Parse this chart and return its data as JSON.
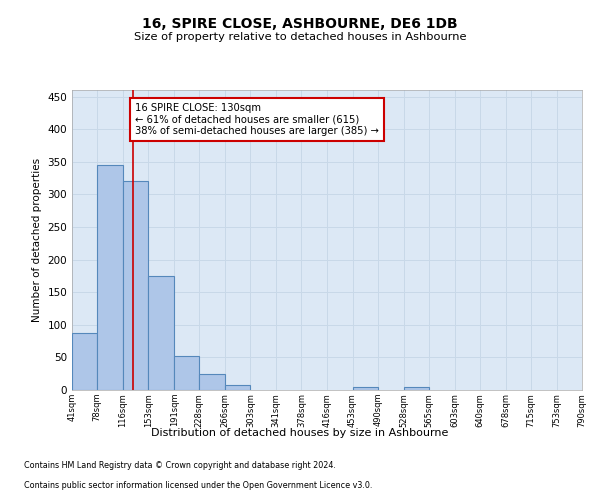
{
  "title": "16, SPIRE CLOSE, ASHBOURNE, DE6 1DB",
  "subtitle": "Size of property relative to detached houses in Ashbourne",
  "xlabel": "Distribution of detached houses by size in Ashbourne",
  "ylabel": "Number of detached properties",
  "bin_edges": [
    41,
    78,
    116,
    153,
    191,
    228,
    266,
    303,
    341,
    378,
    416,
    453,
    490,
    528,
    565,
    603,
    640,
    678,
    715,
    753,
    790
  ],
  "bar_heights": [
    88,
    345,
    320,
    175,
    52,
    25,
    8,
    0,
    0,
    0,
    0,
    5,
    0,
    5,
    0,
    0,
    0,
    0,
    0,
    0
  ],
  "bar_color": "#aec6e8",
  "bar_edge_color": "#5588bb",
  "grid_color": "#c8d8e8",
  "red_line_x": 130,
  "red_line_color": "#cc0000",
  "annotation_text": "16 SPIRE CLOSE: 130sqm\n← 61% of detached houses are smaller (615)\n38% of semi-detached houses are larger (385) →",
  "annotation_box_color": "#ffffff",
  "annotation_box_edgecolor": "#cc0000",
  "ylim": [
    0,
    460
  ],
  "yticks": [
    0,
    50,
    100,
    150,
    200,
    250,
    300,
    350,
    400,
    450
  ],
  "footer_line1": "Contains HM Land Registry data © Crown copyright and database right 2024.",
  "footer_line2": "Contains public sector information licensed under the Open Government Licence v3.0.",
  "background_color": "#ffffff",
  "plot_bg_color": "#dce8f5"
}
